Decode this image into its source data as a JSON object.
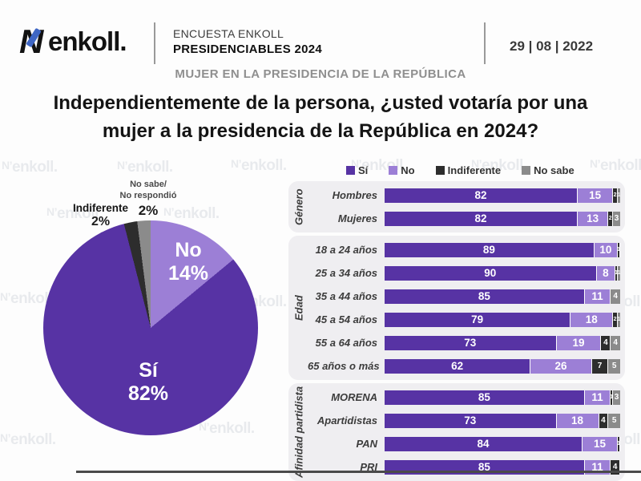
{
  "header": {
    "logo_mark": "N",
    "logo_text": "enkoll.",
    "survey_line1": "ENCUESTA ENKOLL",
    "survey_line2": "PRESIDENCIABLES 2024",
    "date": "29 | 08 | 2022",
    "section_title": "MUJER EN LA PRESIDENCIA DE LA REPÚBLICA"
  },
  "question": {
    "line1": "Independientemente de la persona, ¿usted votaría por una",
    "line2": "mujer a la presidencia de la República en 2024?"
  },
  "watermark": "enkoll.",
  "colors": {
    "si": "#5733a4",
    "no": "#9c7fd6",
    "indiferente": "#2d2d2d",
    "no_sabe": "#8b8b8b"
  },
  "chart_data": [
    {
      "type": "pie",
      "labels": [
        "Sí",
        "No",
        "Indiferente",
        "No sabe/No respondió"
      ],
      "values": [
        82,
        14,
        2,
        2
      ],
      "display_values": [
        "82%",
        "14%",
        "2%",
        "2%"
      ],
      "nosabe_lines": [
        "No sabe/",
        "No respondió"
      ],
      "colors": [
        "#5733a4",
        "#9c7fd6",
        "#2d2d2d",
        "#8b8b8b"
      ],
      "clockwise_order_from_top": [
        "No",
        "Sí",
        "Indiferente",
        "No sabe/No respondió"
      ]
    },
    {
      "type": "bar",
      "stacked": true,
      "orientation": "horizontal",
      "xlim": [
        0,
        100
      ],
      "legend": [
        "Sí",
        "No",
        "Indiferente",
        "No sabe"
      ],
      "series_colors": [
        "#5733a4",
        "#9c7fd6",
        "#2d2d2d",
        "#8b8b8b"
      ],
      "groups": [
        {
          "name": "Género",
          "rows": [
            {
              "label": "Hombres",
              "values": [
                82,
                15,
                2,
                1
              ]
            },
            {
              "label": "Mujeres",
              "values": [
                82,
                13,
                2,
                3
              ]
            }
          ]
        },
        {
          "name": "Edad",
          "rows": [
            {
              "label": "18 a 24 años",
              "values": [
                89,
                10,
                1,
                0
              ]
            },
            {
              "label": "25 a 34 años",
              "values": [
                90,
                8,
                1,
                1
              ]
            },
            {
              "label": "35 a 44 años",
              "values": [
                85,
                11,
                0,
                4
              ]
            },
            {
              "label": "45 a 54 años",
              "values": [
                79,
                18,
                2,
                1
              ]
            },
            {
              "label": "55 a 64 años",
              "values": [
                73,
                19,
                4,
                4
              ]
            },
            {
              "label": "65 años o más",
              "values": [
                62,
                26,
                7,
                5
              ]
            }
          ]
        },
        {
          "name": "Afinidad partidista",
          "rows": [
            {
              "label": "MORENA",
              "values": [
                85,
                11,
                1,
                3
              ]
            },
            {
              "label": "Apartidistas",
              "values": [
                73,
                18,
                4,
                5
              ]
            },
            {
              "label": "PAN",
              "values": [
                84,
                15,
                1,
                0
              ]
            },
            {
              "label": "PRI",
              "values": [
                85,
                11,
                4,
                0
              ]
            }
          ]
        }
      ]
    }
  ]
}
